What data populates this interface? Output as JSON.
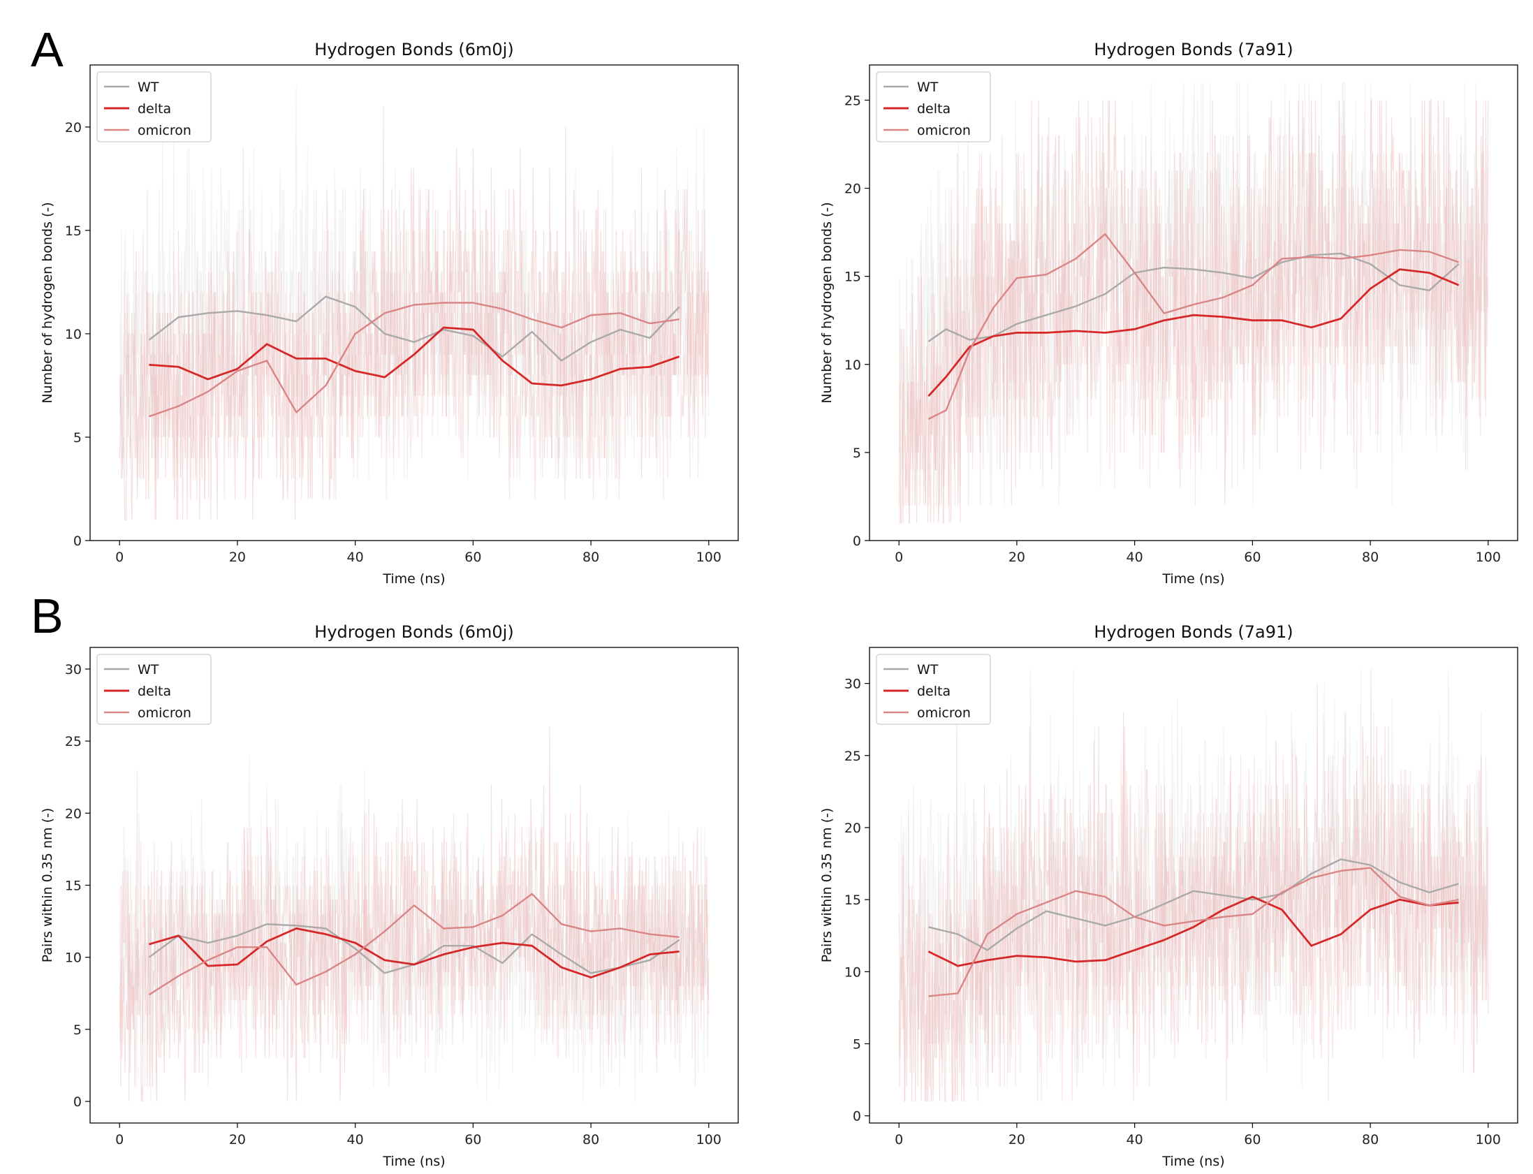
{
  "figure": {
    "panel_labels": [
      "A",
      "B"
    ]
  },
  "colors": {
    "WT": "#a9a9a9",
    "delta": "#d62728",
    "omicron": "#d98585",
    "raw_WT": "#e6e6e6",
    "raw_delta": "#f1c6c6",
    "raw_omicron": "#e8b4b4"
  },
  "chart_data": [
    {
      "type": "line",
      "title": "Hydrogen Bonds (6m0j)",
      "xlabel": "Time (ns)",
      "ylabel": "Number of hydrogen bonds (-)",
      "xlim": [
        -5,
        105
      ],
      "ylim": [
        0,
        23
      ],
      "xticks": [
        0,
        20,
        40,
        60,
        80,
        100
      ],
      "yticks": [
        0,
        5,
        10,
        15,
        20
      ],
      "legend": "top-left",
      "grid": false,
      "raw": {
        "WT": [
          10,
          3,
          22
        ],
        "delta": [
          8,
          2,
          17
        ],
        "omicron": [
          9,
          1,
          21
        ]
      },
      "series": [
        {
          "name": "WT",
          "x": [
            5,
            10,
            15,
            20,
            25,
            30,
            35,
            40,
            45,
            50,
            55,
            60,
            65,
            70,
            75,
            80,
            85,
            90,
            95
          ],
          "values": [
            9.7,
            10.8,
            11.0,
            11.1,
            10.9,
            10.6,
            11.8,
            11.3,
            10.0,
            9.6,
            10.2,
            9.9,
            8.9,
            10.1,
            8.7,
            9.6,
            10.2,
            9.8,
            11.3
          ]
        },
        {
          "name": "delta",
          "x": [
            5,
            10,
            15,
            20,
            25,
            30,
            35,
            40,
            45,
            50,
            55,
            60,
            65,
            70,
            75,
            80,
            85,
            90,
            95
          ],
          "values": [
            8.5,
            8.4,
            7.8,
            8.3,
            9.5,
            8.8,
            8.8,
            8.2,
            7.9,
            9.0,
            10.3,
            10.2,
            8.7,
            7.6,
            7.5,
            7.8,
            8.3,
            8.4,
            8.9
          ]
        },
        {
          "name": "omicron",
          "x": [
            5,
            10,
            15,
            20,
            25,
            30,
            35,
            40,
            45,
            50,
            55,
            60,
            65,
            70,
            75,
            80,
            85,
            90,
            95
          ],
          "values": [
            6.0,
            6.5,
            7.2,
            8.2,
            8.7,
            6.2,
            7.5,
            10.0,
            11.0,
            11.4,
            11.5,
            11.5,
            11.2,
            10.7,
            10.3,
            10.9,
            11.0,
            10.5,
            10.7
          ]
        }
      ]
    },
    {
      "type": "line",
      "title": "Hydrogen Bonds (7a91)",
      "xlabel": "Time (ns)",
      "ylabel": "Number of hydrogen bonds (-)",
      "xlim": [
        -5,
        105
      ],
      "ylim": [
        0,
        27
      ],
      "xticks": [
        0,
        20,
        40,
        60,
        80,
        100
      ],
      "yticks": [
        0,
        5,
        10,
        15,
        20,
        25
      ],
      "legend": "top-left",
      "grid": false,
      "raw": {
        "WT": [
          14,
          2,
          26
        ],
        "delta": [
          12,
          2,
          22
        ],
        "omicron": [
          14,
          1,
          25
        ]
      },
      "series": [
        {
          "name": "WT",
          "x": [
            5,
            8,
            12,
            16,
            20,
            25,
            30,
            35,
            40,
            45,
            50,
            55,
            60,
            65,
            70,
            75,
            80,
            85,
            90,
            95
          ],
          "values": [
            11.3,
            12.0,
            11.4,
            11.6,
            12.3,
            12.8,
            13.3,
            14.0,
            15.2,
            15.5,
            15.4,
            15.2,
            14.9,
            15.8,
            16.2,
            16.3,
            15.7,
            14.5,
            14.2,
            15.7
          ]
        },
        {
          "name": "delta",
          "x": [
            5,
            8,
            12,
            16,
            20,
            25,
            30,
            35,
            40,
            45,
            50,
            55,
            60,
            65,
            70,
            75,
            80,
            85,
            90,
            95
          ],
          "values": [
            8.2,
            9.3,
            11.0,
            11.6,
            11.8,
            11.8,
            11.9,
            11.8,
            12.0,
            12.5,
            12.8,
            12.7,
            12.5,
            12.5,
            12.1,
            12.6,
            14.3,
            15.4,
            15.2,
            14.5
          ]
        },
        {
          "name": "omicron",
          "x": [
            5,
            8,
            12,
            16,
            20,
            25,
            30,
            35,
            40,
            45,
            50,
            55,
            60,
            65,
            70,
            75,
            80,
            85,
            90,
            95
          ],
          "values": [
            6.9,
            7.4,
            10.8,
            13.2,
            14.9,
            15.1,
            16.0,
            17.4,
            15.2,
            12.9,
            13.4,
            13.8,
            14.5,
            16.0,
            16.1,
            16.0,
            16.2,
            16.5,
            16.4,
            15.8
          ]
        }
      ]
    },
    {
      "type": "line",
      "title": "Hydrogen Bonds (6m0j)",
      "xlabel": "Time (ns)",
      "ylabel": "Pairs within 0.35 nm (-)",
      "xlim": [
        -5,
        105
      ],
      "ylim": [
        -1.5,
        31.5
      ],
      "xticks": [
        0,
        20,
        40,
        60,
        80,
        100
      ],
      "yticks": [
        0,
        5,
        10,
        15,
        20,
        25,
        30
      ],
      "legend": "top-left",
      "grid": false,
      "raw": {
        "WT": [
          11,
          0,
          29
        ],
        "delta": [
          10,
          1,
          25
        ],
        "omicron": [
          11,
          0,
          30
        ]
      },
      "series": [
        {
          "name": "WT",
          "x": [
            5,
            10,
            15,
            20,
            25,
            30,
            35,
            40,
            45,
            50,
            55,
            60,
            65,
            70,
            75,
            80,
            85,
            90,
            95
          ],
          "values": [
            10.0,
            11.5,
            11.0,
            11.5,
            12.3,
            12.2,
            12.0,
            10.6,
            8.9,
            9.5,
            10.8,
            10.8,
            9.6,
            11.6,
            10.2,
            8.9,
            9.3,
            9.8,
            11.2
          ]
        },
        {
          "name": "delta",
          "x": [
            5,
            10,
            15,
            20,
            25,
            30,
            35,
            40,
            45,
            50,
            55,
            60,
            65,
            70,
            75,
            80,
            85,
            90,
            95
          ],
          "values": [
            10.9,
            11.5,
            9.4,
            9.5,
            11.1,
            12.0,
            11.6,
            11.0,
            9.8,
            9.5,
            10.2,
            10.7,
            11.0,
            10.8,
            9.3,
            8.6,
            9.3,
            10.2,
            10.4
          ]
        },
        {
          "name": "omicron",
          "x": [
            5,
            10,
            15,
            20,
            25,
            30,
            35,
            40,
            45,
            50,
            55,
            60,
            65,
            70,
            75,
            80,
            85,
            90,
            95
          ],
          "values": [
            7.4,
            8.7,
            9.8,
            10.7,
            10.7,
            8.1,
            9.0,
            10.2,
            11.8,
            13.6,
            12.0,
            12.1,
            12.9,
            14.4,
            12.3,
            11.8,
            12.0,
            11.6,
            11.4
          ]
        }
      ]
    },
    {
      "type": "line",
      "title": "Hydrogen Bonds (7a91)",
      "xlabel": "Time (ns)",
      "ylabel": "Pairs within 0.35 nm (-)",
      "xlim": [
        -5,
        105
      ],
      "ylim": [
        -0.5,
        32.5
      ],
      "xticks": [
        0,
        20,
        40,
        60,
        80,
        100
      ],
      "yticks": [
        0,
        5,
        10,
        15,
        20,
        25,
        30
      ],
      "legend": "top-left",
      "grid": false,
      "raw": {
        "WT": [
          15,
          2,
          31
        ],
        "delta": [
          13,
          1,
          25
        ],
        "omicron": [
          14,
          1,
          31
        ]
      },
      "series": [
        {
          "name": "WT",
          "x": [
            5,
            10,
            15,
            20,
            25,
            30,
            35,
            40,
            45,
            50,
            55,
            60,
            65,
            70,
            75,
            80,
            85,
            90,
            95
          ],
          "values": [
            13.1,
            12.6,
            11.5,
            13.0,
            14.2,
            13.7,
            13.2,
            13.8,
            14.7,
            15.6,
            15.3,
            15.0,
            15.4,
            16.8,
            17.8,
            17.4,
            16.2,
            15.5,
            16.1
          ]
        },
        {
          "name": "delta",
          "x": [
            5,
            10,
            15,
            20,
            25,
            30,
            35,
            40,
            45,
            50,
            55,
            60,
            65,
            70,
            75,
            80,
            85,
            90,
            95
          ],
          "values": [
            11.4,
            10.4,
            10.8,
            11.1,
            11.0,
            10.7,
            10.8,
            11.5,
            12.2,
            13.1,
            14.3,
            15.2,
            14.3,
            11.8,
            12.6,
            14.3,
            15.0,
            14.6,
            14.8
          ]
        },
        {
          "name": "omicron",
          "x": [
            5,
            10,
            15,
            20,
            25,
            30,
            35,
            40,
            45,
            50,
            55,
            60,
            65,
            70,
            75,
            80,
            85,
            90,
            95
          ],
          "values": [
            8.3,
            8.5,
            12.6,
            14.0,
            14.8,
            15.6,
            15.2,
            13.8,
            13.2,
            13.5,
            13.8,
            14.0,
            15.5,
            16.5,
            17.0,
            17.2,
            15.2,
            14.6,
            15.0
          ]
        }
      ]
    }
  ]
}
